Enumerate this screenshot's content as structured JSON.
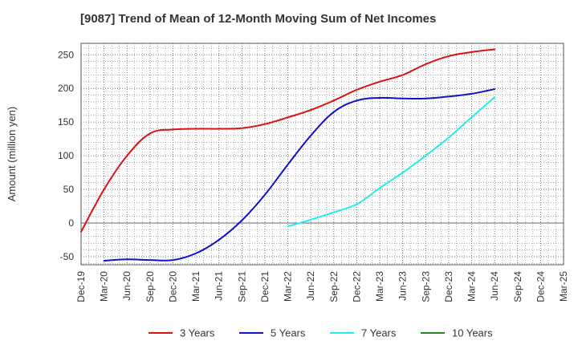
{
  "chart_data": {
    "type": "line",
    "title": "[9087]  Trend of Mean of 12-Month Moving Sum of Net Incomes",
    "xlabel": "",
    "ylabel": "Amount (million yen)",
    "x_ticks": [
      "Dec-19",
      "Mar-20",
      "Jun-20",
      "Sep-20",
      "Dec-20",
      "Mar-21",
      "Jun-21",
      "Sep-21",
      "Dec-21",
      "Mar-22",
      "Jun-22",
      "Sep-22",
      "Dec-22",
      "Mar-23",
      "Jun-23",
      "Sep-23",
      "Dec-23",
      "Mar-24",
      "Jun-24",
      "Sep-24",
      "Dec-24",
      "Mar-25"
    ],
    "y_ticks": [
      "250",
      "200",
      "150",
      "100",
      "50",
      "0",
      "-50"
    ],
    "ylim": [
      -62,
      267
    ],
    "grid": true,
    "legend_position": "bottom",
    "series": [
      {
        "name": "3 Years",
        "color": "#dd1111",
        "values": [
          -13,
          50,
          100,
          133,
          139,
          140,
          140,
          141,
          147,
          157,
          168,
          182,
          198,
          210,
          220,
          236,
          248,
          254,
          258
        ]
      },
      {
        "name": "5 Years",
        "color": "#1111cc",
        "values": [
          null,
          -56,
          -54,
          -55,
          -55,
          -45,
          -25,
          4,
          42,
          87,
          130,
          165,
          182,
          186,
          185,
          185,
          188,
          192,
          199
        ]
      },
      {
        "name": "7 Years",
        "color": "#22eeee",
        "values": [
          null,
          null,
          null,
          null,
          null,
          null,
          null,
          null,
          null,
          -5,
          5,
          16,
          28,
          52,
          75,
          100,
          127,
          157,
          187
        ]
      },
      {
        "name": "10 Years",
        "color": "#228822",
        "values": []
      }
    ]
  }
}
